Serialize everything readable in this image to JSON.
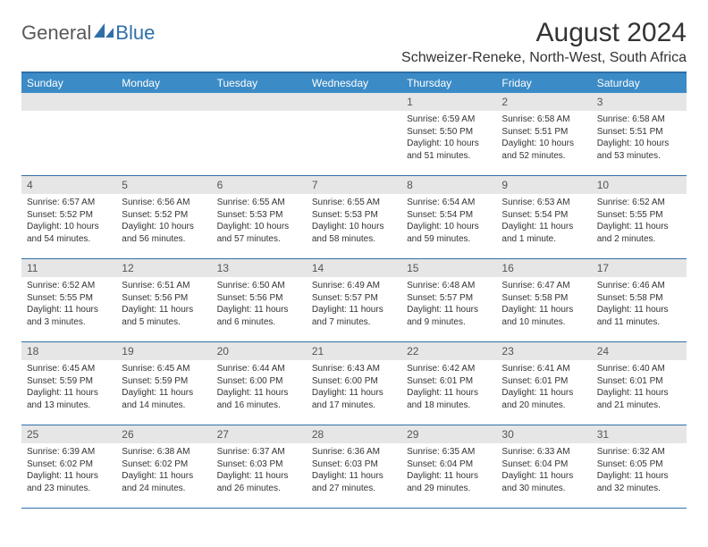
{
  "logo": {
    "text1": "General",
    "text2": "Blue"
  },
  "title": "August 2024",
  "location": "Schweizer-Reneke, North-West, South Africa",
  "colors": {
    "header_bg": "#3b8bc6",
    "header_text": "#ffffff",
    "border": "#2f6fa8",
    "daynum_bg": "#e6e6e6",
    "daynum_text": "#555555",
    "data_text": "#333333",
    "logo_gray": "#595959",
    "logo_blue": "#2f6fa8",
    "background": "#ffffff"
  },
  "day_headers": [
    "Sunday",
    "Monday",
    "Tuesday",
    "Wednesday",
    "Thursday",
    "Friday",
    "Saturday"
  ],
  "weeks": [
    [
      null,
      null,
      null,
      null,
      {
        "n": "1",
        "sr": "6:59 AM",
        "ss": "5:50 PM",
        "dl": "10 hours and 51 minutes."
      },
      {
        "n": "2",
        "sr": "6:58 AM",
        "ss": "5:51 PM",
        "dl": "10 hours and 52 minutes."
      },
      {
        "n": "3",
        "sr": "6:58 AM",
        "ss": "5:51 PM",
        "dl": "10 hours and 53 minutes."
      }
    ],
    [
      {
        "n": "4",
        "sr": "6:57 AM",
        "ss": "5:52 PM",
        "dl": "10 hours and 54 minutes."
      },
      {
        "n": "5",
        "sr": "6:56 AM",
        "ss": "5:52 PM",
        "dl": "10 hours and 56 minutes."
      },
      {
        "n": "6",
        "sr": "6:55 AM",
        "ss": "5:53 PM",
        "dl": "10 hours and 57 minutes."
      },
      {
        "n": "7",
        "sr": "6:55 AM",
        "ss": "5:53 PM",
        "dl": "10 hours and 58 minutes."
      },
      {
        "n": "8",
        "sr": "6:54 AM",
        "ss": "5:54 PM",
        "dl": "10 hours and 59 minutes."
      },
      {
        "n": "9",
        "sr": "6:53 AM",
        "ss": "5:54 PM",
        "dl": "11 hours and 1 minute."
      },
      {
        "n": "10",
        "sr": "6:52 AM",
        "ss": "5:55 PM",
        "dl": "11 hours and 2 minutes."
      }
    ],
    [
      {
        "n": "11",
        "sr": "6:52 AM",
        "ss": "5:55 PM",
        "dl": "11 hours and 3 minutes."
      },
      {
        "n": "12",
        "sr": "6:51 AM",
        "ss": "5:56 PM",
        "dl": "11 hours and 5 minutes."
      },
      {
        "n": "13",
        "sr": "6:50 AM",
        "ss": "5:56 PM",
        "dl": "11 hours and 6 minutes."
      },
      {
        "n": "14",
        "sr": "6:49 AM",
        "ss": "5:57 PM",
        "dl": "11 hours and 7 minutes."
      },
      {
        "n": "15",
        "sr": "6:48 AM",
        "ss": "5:57 PM",
        "dl": "11 hours and 9 minutes."
      },
      {
        "n": "16",
        "sr": "6:47 AM",
        "ss": "5:58 PM",
        "dl": "11 hours and 10 minutes."
      },
      {
        "n": "17",
        "sr": "6:46 AM",
        "ss": "5:58 PM",
        "dl": "11 hours and 11 minutes."
      }
    ],
    [
      {
        "n": "18",
        "sr": "6:45 AM",
        "ss": "5:59 PM",
        "dl": "11 hours and 13 minutes."
      },
      {
        "n": "19",
        "sr": "6:45 AM",
        "ss": "5:59 PM",
        "dl": "11 hours and 14 minutes."
      },
      {
        "n": "20",
        "sr": "6:44 AM",
        "ss": "6:00 PM",
        "dl": "11 hours and 16 minutes."
      },
      {
        "n": "21",
        "sr": "6:43 AM",
        "ss": "6:00 PM",
        "dl": "11 hours and 17 minutes."
      },
      {
        "n": "22",
        "sr": "6:42 AM",
        "ss": "6:01 PM",
        "dl": "11 hours and 18 minutes."
      },
      {
        "n": "23",
        "sr": "6:41 AM",
        "ss": "6:01 PM",
        "dl": "11 hours and 20 minutes."
      },
      {
        "n": "24",
        "sr": "6:40 AM",
        "ss": "6:01 PM",
        "dl": "11 hours and 21 minutes."
      }
    ],
    [
      {
        "n": "25",
        "sr": "6:39 AM",
        "ss": "6:02 PM",
        "dl": "11 hours and 23 minutes."
      },
      {
        "n": "26",
        "sr": "6:38 AM",
        "ss": "6:02 PM",
        "dl": "11 hours and 24 minutes."
      },
      {
        "n": "27",
        "sr": "6:37 AM",
        "ss": "6:03 PM",
        "dl": "11 hours and 26 minutes."
      },
      {
        "n": "28",
        "sr": "6:36 AM",
        "ss": "6:03 PM",
        "dl": "11 hours and 27 minutes."
      },
      {
        "n": "29",
        "sr": "6:35 AM",
        "ss": "6:04 PM",
        "dl": "11 hours and 29 minutes."
      },
      {
        "n": "30",
        "sr": "6:33 AM",
        "ss": "6:04 PM",
        "dl": "11 hours and 30 minutes."
      },
      {
        "n": "31",
        "sr": "6:32 AM",
        "ss": "6:05 PM",
        "dl": "11 hours and 32 minutes."
      }
    ]
  ],
  "labels": {
    "sunrise": "Sunrise: ",
    "sunset": "Sunset: ",
    "daylight": "Daylight: "
  }
}
